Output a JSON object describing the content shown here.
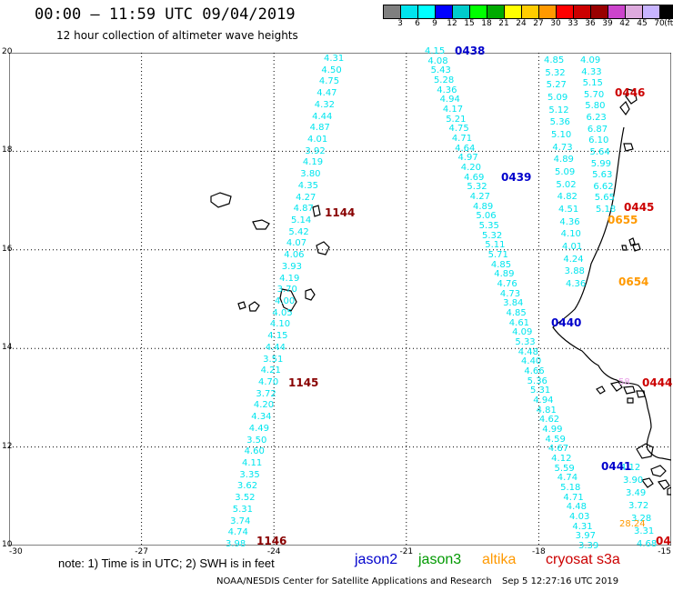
{
  "header": {
    "title": "00:00 – 11:59 UTC 09/04/2019",
    "subtitle": "12 hour collection of altimeter wave heights"
  },
  "scale": {
    "colors": [
      "#7f7f7f",
      "#00e5ee",
      "#00ffff",
      "#0000ff",
      "#00cccc",
      "#00ff00",
      "#00aa00",
      "#ffff00",
      "#ffcc00",
      "#ff9900",
      "#ff0000",
      "#cc0000",
      "#990000",
      "#cc44cc",
      "#ddaadd",
      "#c8b4ff",
      "#000000"
    ],
    "labels": [
      "3",
      "6",
      "9",
      "12",
      "15",
      "18",
      "21",
      "24",
      "27",
      "30",
      "33",
      "36",
      "39",
      "42",
      "45",
      "70"
    ],
    "unit": "(ft)"
  },
  "axes": {
    "y": [
      "20",
      "18",
      "16",
      "14",
      "12",
      "10"
    ],
    "x": [
      "-30",
      "-27",
      "-24",
      "-21",
      "-18",
      "-15"
    ]
  },
  "note": "note:  1)  Time is in UTC;  2)  SWH is in feet",
  "legend": [
    {
      "name": "jason2",
      "color": "#0000cc"
    },
    {
      "name": "jason3",
      "color": "#009900"
    },
    {
      "name": "altika",
      "color": "#ff9900"
    },
    {
      "name": "cryosat s3a",
      "color": "#cc0000"
    }
  ],
  "credit": "NOAA/NESDIS Center for Satellite Applications and Research",
  "credit_time": "Sep  5 12:27:16 UTC 2019",
  "tracks": [
    {
      "id": "t1144",
      "values": [
        "4.31",
        "4.50",
        "4.75",
        "4.47",
        "4.32",
        "4.44",
        "4.87",
        "4.01",
        "3.92",
        "4.19",
        "3.80",
        "4.35",
        "4.27",
        "4.87",
        "5.14",
        "5.42",
        "4.07",
        "4.06",
        "3.93",
        "4.19",
        "3.70",
        "4.00",
        "4.05",
        "4.10",
        "4.15",
        "4.44",
        "3.51",
        "4.21",
        "4.70",
        "3.72",
        "4.20",
        "4.34",
        "4.49",
        "3.50",
        "4.60",
        "4.11",
        "3.35",
        "3.62",
        "3.52",
        "5.31",
        "3.74",
        "4.74",
        "3.98"
      ]
    },
    {
      "id": "t0438",
      "values": [
        "4.15",
        "4.08",
        "5.43",
        "5.28",
        "4.36",
        "4.94",
        "4.17",
        "5.21",
        "4.75",
        "4.71",
        "4.64",
        "4.97",
        "4.20",
        "4.69",
        "5.32",
        "4.27",
        "4.89",
        "5.06",
        "5.35",
        "5.32",
        "5.11",
        "5.71",
        "4.85",
        "4.89",
        "4.76",
        "4.73",
        "3.84",
        "4.85",
        "4.61",
        "4.09",
        "5.33",
        "4.48",
        "4.40",
        "4.66",
        "5.36",
        "5.31",
        "4.94",
        "4.81",
        "4.62",
        "4.99",
        "4.59",
        "4.67",
        "4.12",
        "5.59",
        "4.74",
        "5.18",
        "4.71",
        "4.48",
        "4.03",
        "4.31",
        "3.97",
        "3.39"
      ]
    },
    {
      "id": "t0446",
      "values": [
        "4.85",
        "5.32",
        "5.27",
        "5.09",
        "5.12",
        "5.36",
        "5.10",
        "4.73",
        "4.89",
        "5.09",
        "5.02",
        "4.82",
        "4.51",
        "4.36",
        "4.10",
        "4.01",
        "4.24",
        "3.88",
        "4.36"
      ]
    },
    {
      "id": "t0446b",
      "values": [
        "4.09",
        "4.33",
        "5.15",
        "5.70",
        "5.80",
        "6.23",
        "6.87",
        "6.10",
        "5.64",
        "5.99",
        "5.63",
        "6.62",
        "5.65",
        "5.18"
      ]
    },
    {
      "id": "t0441",
      "values": [
        "4.12",
        "3.90",
        "3.49",
        "3.72",
        "3.28",
        "3.31",
        "4.68"
      ]
    }
  ],
  "times": [
    {
      "label": "0438",
      "color": "#0000cc"
    },
    {
      "label": "0446",
      "color": "#cc0000"
    },
    {
      "label": "1144",
      "color": "#880000"
    },
    {
      "label": "0439",
      "color": "#0000cc"
    },
    {
      "label": "0445",
      "color": "#cc0000"
    },
    {
      "label": "0655",
      "color": "#ff9900"
    },
    {
      "label": "0654",
      "color": "#ff9900"
    },
    {
      "label": "0440",
      "color": "#0000cc"
    },
    {
      "label": "1145",
      "color": "#880000"
    },
    {
      "label": "0444",
      "color": "#cc0000"
    },
    {
      "label": "0441",
      "color": "#0000cc"
    },
    {
      "label": "1146",
      "color": "#880000"
    },
    {
      "label": "04",
      "color": "#cc0000"
    }
  ],
  "extra": {
    "altika_pair": "28.24",
    "pink_value": "58"
  }
}
